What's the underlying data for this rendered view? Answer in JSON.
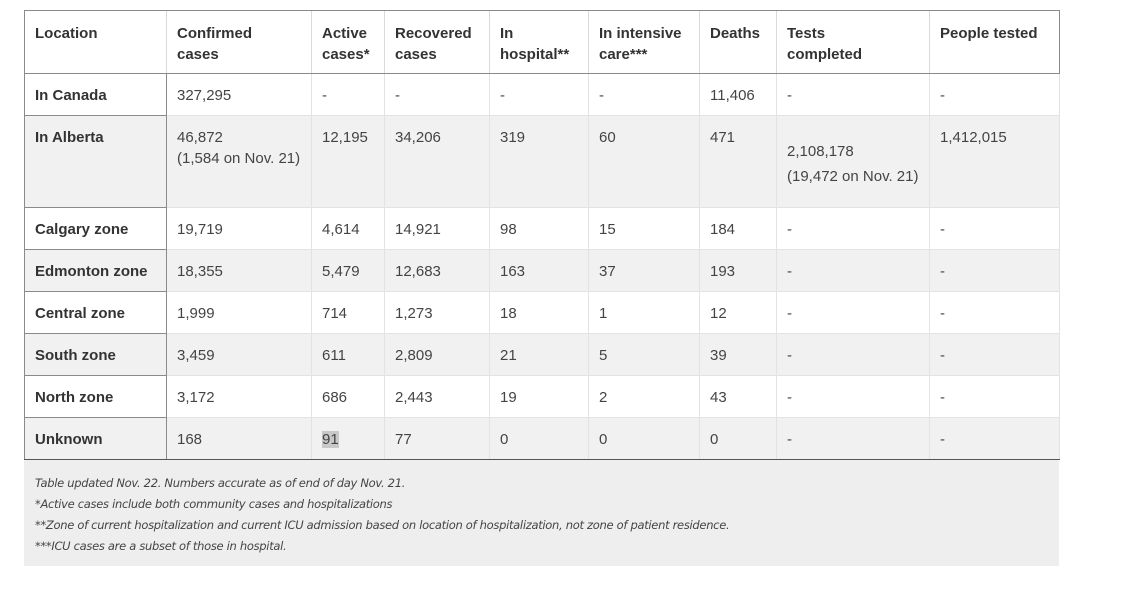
{
  "table": {
    "headers": [
      [
        "Location",
        ""
      ],
      [
        "Confirmed",
        "cases"
      ],
      [
        "Active",
        "cases*"
      ],
      [
        "Recovered",
        "cases"
      ],
      [
        "In",
        "hospital**"
      ],
      [
        "In intensive",
        "care***"
      ],
      [
        "Deaths",
        ""
      ],
      [
        "Tests",
        "completed"
      ],
      [
        "People tested",
        ""
      ]
    ],
    "rows": [
      {
        "location": "In Canada",
        "confirmed": "327,295",
        "confirmed_note": "",
        "active": "-",
        "recovered": "-",
        "hospital": "-",
        "icu": "-",
        "deaths": "11,406",
        "tests": "-",
        "tests_note": "",
        "people_tested": "-"
      },
      {
        "location": "In Alberta",
        "confirmed": "46,872",
        "confirmed_note": "(1,584 on Nov. 21)",
        "active": "12,195",
        "recovered": "34,206",
        "hospital": "319",
        "icu": "60",
        "deaths": "471",
        "tests": "2,108,178",
        "tests_note": "(19,472 on Nov. 21)",
        "people_tested": "1,412,015"
      },
      {
        "location": "Calgary zone",
        "confirmed": "19,719",
        "confirmed_note": "",
        "active": "4,614",
        "recovered": "14,921",
        "hospital": "98",
        "icu": "15",
        "deaths": "184",
        "tests": "-",
        "tests_note": "",
        "people_tested": "-"
      },
      {
        "location": "Edmonton zone",
        "confirmed": "18,355",
        "confirmed_note": "",
        "active": "5,479",
        "recovered": "12,683",
        "hospital": "163",
        "icu": "37",
        "deaths": "193",
        "tests": "-",
        "tests_note": "",
        "people_tested": "-"
      },
      {
        "location": "Central zone",
        "confirmed": "1,999",
        "confirmed_note": "",
        "active": "714",
        "recovered": "1,273",
        "hospital": "18",
        "icu": "1",
        "deaths": "12",
        "tests": "-",
        "tests_note": "",
        "people_tested": "-"
      },
      {
        "location": "South zone",
        "confirmed": "3,459",
        "confirmed_note": "",
        "active": "611",
        "recovered": "2,809",
        "hospital": "21",
        "icu": "5",
        "deaths": "39",
        "tests": "-",
        "tests_note": "",
        "people_tested": "-"
      },
      {
        "location": "North zone",
        "confirmed": "3,172",
        "confirmed_note": "",
        "active": "686",
        "recovered": "2,443",
        "hospital": "19",
        "icu": "2",
        "deaths": "43",
        "tests": "-",
        "tests_note": "",
        "people_tested": "-"
      },
      {
        "location": "Unknown",
        "confirmed": "168",
        "confirmed_note": "",
        "active": "91",
        "recovered": "77",
        "hospital": "0",
        "icu": "0",
        "deaths": "0",
        "tests": "-",
        "tests_note": "",
        "people_tested": "-"
      }
    ]
  },
  "notes": [
    "Table updated Nov. 22. Numbers accurate as of end of day Nov. 21.",
    "*Active cases include both community cases and hospitalizations",
    "**Zone of current hospitalization and current ICU admission based on location of hospitalization, not zone of patient residence.",
    "***ICU cases are a subset of those in hospital."
  ]
}
